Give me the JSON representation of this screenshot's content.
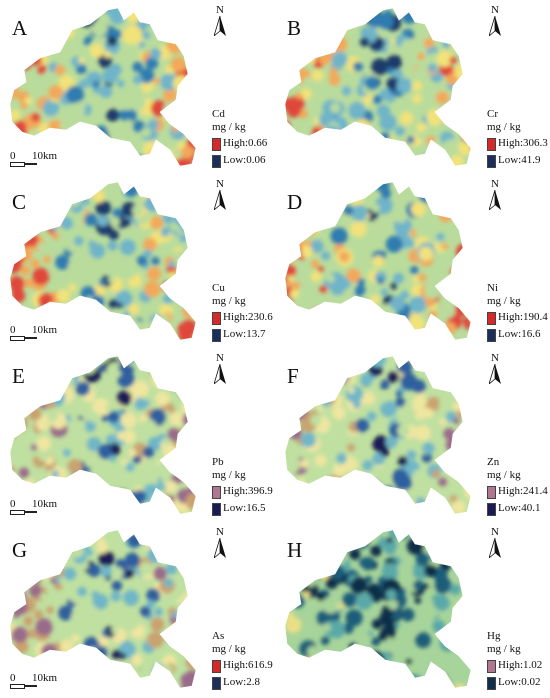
{
  "north_label": "N",
  "scale": {
    "zero": "0",
    "dist": "10km"
  },
  "panels": [
    {
      "id": "A",
      "element": "Cd",
      "unit": "mg / kg",
      "high": "High:0.66",
      "low": "Low:0.06",
      "high_color": "#d7282a",
      "low_color": "#1a2f5c",
      "scale": true
    },
    {
      "id": "B",
      "element": "Cr",
      "unit": "mg / kg",
      "high": "High:306.3",
      "low": "Low:41.9",
      "high_color": "#d7282a",
      "low_color": "#1a2f5c",
      "scale": false
    },
    {
      "id": "C",
      "element": "Cu",
      "unit": "mg / kg",
      "high": "High:230.6",
      "low": "Low:13.7",
      "high_color": "#d7282a",
      "low_color": "#1a2f5c",
      "scale": true
    },
    {
      "id": "D",
      "element": "Ni",
      "unit": "mg / kg",
      "high": "High:190.4",
      "low": "Low:16.6",
      "high_color": "#d7282a",
      "low_color": "#1a2f5c",
      "scale": false
    },
    {
      "id": "E",
      "element": "Pb",
      "unit": "mg / kg",
      "high": "High:396.9",
      "low": "Low:16.5",
      "high_color": "#b07890",
      "low_color": "#1a1a55",
      "scale": true
    },
    {
      "id": "F",
      "element": "Zn",
      "unit": "mg / kg",
      "high": "High:241.4",
      "low": "Low:40.1",
      "high_color": "#b07890",
      "low_color": "#1a1a55",
      "scale": false
    },
    {
      "id": "G",
      "element": "As",
      "unit": "mg / kg",
      "high": "High:616.9",
      "low": "Low:2.8",
      "high_color": "#d7282a",
      "low_color": "#1a2f5c",
      "scale": true
    },
    {
      "id": "H",
      "element": "Hg",
      "unit": "mg / kg",
      "high": "High:1.02",
      "low": "Low:0.02",
      "high_color": "#b07890",
      "low_color": "#0f2f4a",
      "scale": false
    }
  ]
}
